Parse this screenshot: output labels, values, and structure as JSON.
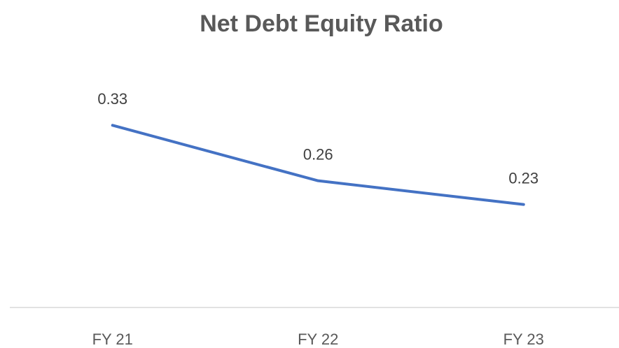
{
  "chart_data": {
    "type": "line",
    "title": "Net Debt Equity Ratio",
    "categories": [
      "FY 21",
      "FY 22",
      "FY 23"
    ],
    "series": [
      {
        "color": "#4472c4",
        "values": [
          0.33,
          0.26,
          0.23
        ]
      }
    ],
    "ylim": [
      0.1,
      0.4
    ]
  }
}
